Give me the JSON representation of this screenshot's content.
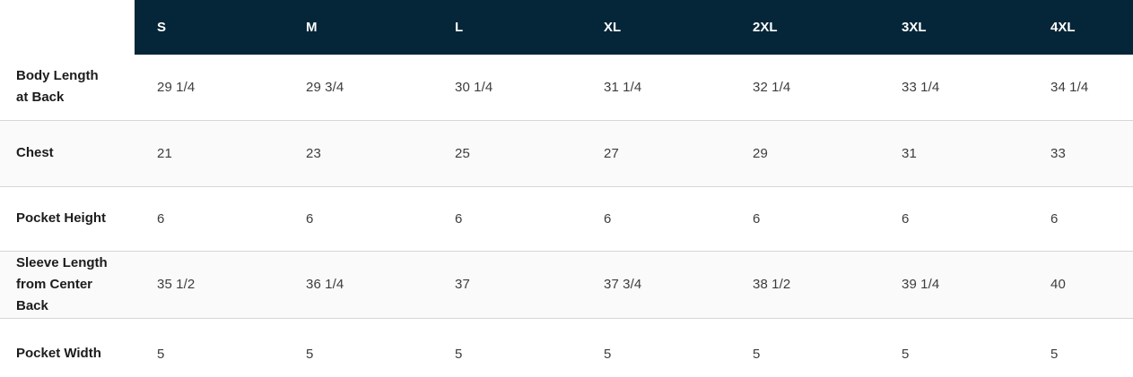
{
  "colors": {
    "header_bg": "#052638",
    "stripe": "#fafafa",
    "border": "#d6d6d6",
    "header_text": "#ffffff",
    "label_text": "#1c1c1e",
    "value_text": "#3c3c3c"
  },
  "size_chart": {
    "sizes": [
      "S",
      "M",
      "L",
      "XL",
      "2XL",
      "3XL",
      "4XL"
    ],
    "rows": [
      {
        "label": "Body Length at Back",
        "values": [
          "29 1/4",
          "29 3/4",
          "30 1/4",
          "31 1/4",
          "32 1/4",
          "33 1/4",
          "34 1/4"
        ]
      },
      {
        "label": "Chest",
        "values": [
          "21",
          "23",
          "25",
          "27",
          "29",
          "31",
          "33"
        ]
      },
      {
        "label": "Pocket Height",
        "values": [
          "6",
          "6",
          "6",
          "6",
          "6",
          "6",
          "6"
        ]
      },
      {
        "label": "Sleeve Length from Center Back",
        "values": [
          "35 1/2",
          "36 1/4",
          "37",
          "37 3/4",
          "38 1/2",
          "39 1/4",
          "40"
        ]
      },
      {
        "label": "Pocket Width",
        "values": [
          "5",
          "5",
          "5",
          "5",
          "5",
          "5",
          "5"
        ]
      }
    ]
  }
}
